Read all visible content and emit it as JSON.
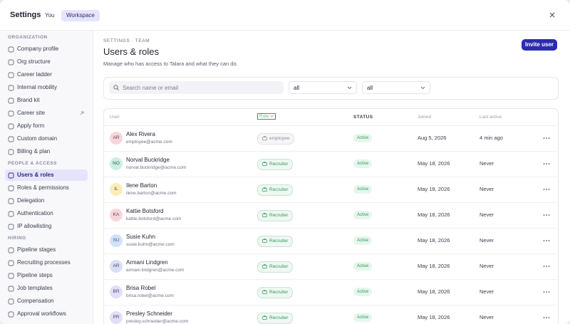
{
  "header": {
    "title": "Settings",
    "tabs": [
      {
        "label": "You"
      },
      {
        "label": "Workspace",
        "selected": true
      }
    ]
  },
  "sidebar": {
    "sections": [
      {
        "label": "ORGANIZATION",
        "items": [
          {
            "label": "Company profile"
          },
          {
            "label": "Org structure"
          },
          {
            "label": "Career ladder"
          },
          {
            "label": "Internal mobility"
          },
          {
            "label": "Brand kit"
          },
          {
            "label": "Career site",
            "external": true
          },
          {
            "label": "Apply form"
          },
          {
            "label": "Custom domain"
          },
          {
            "label": "Billing & plan"
          }
        ]
      },
      {
        "label": "PEOPLE & ACCESS",
        "items": [
          {
            "label": "Users & roles",
            "active": true
          },
          {
            "label": "Roles & permissions"
          },
          {
            "label": "Delegation"
          },
          {
            "label": "Authentication"
          },
          {
            "label": "IP allowlisting"
          }
        ]
      },
      {
        "label": "HIRING",
        "items": [
          {
            "label": "Pipeline stages"
          },
          {
            "label": "Recruiting processes"
          },
          {
            "label": "Pipeline steps"
          },
          {
            "label": "Job templates"
          },
          {
            "label": "Compensation"
          },
          {
            "label": "Approval workflows"
          }
        ]
      }
    ]
  },
  "main": {
    "breadcrumb": "SETTINGS · TEAM",
    "title": "Users & roles",
    "subtitle": "Manage who has access to Talara and what they can do.",
    "invite_button": "Invite user",
    "search_placeholder": "Search name or email",
    "filters": [
      "all",
      "all"
    ],
    "table": {
      "columns": [
        "User",
        "Role",
        "STATUS",
        "Joined",
        "Last active"
      ],
      "rows": [
        {
          "initials": "AR",
          "avatar_color": "#f9d5db",
          "name": "Alex Rivera",
          "email": "employee@acme.com",
          "role": "employee",
          "role_color": "#8a8c9b",
          "status": "Active",
          "joined": "Aug 5, 2026",
          "last_active": "4 min ago"
        },
        {
          "initials": "NO",
          "avatar_color": "#c9f1df",
          "name": "Norval Buckridge",
          "email": "norval.buckridge@acme.com",
          "role": "Recruiter",
          "role_color": "#2f9a5c",
          "status": "Active",
          "joined": "May 18, 2026",
          "last_active": "Never"
        },
        {
          "initials": "IL",
          "avatar_color": "#fbedb5",
          "name": "Ilene Barton",
          "email": "ilene.barton@acme.com",
          "role": "Recruiter",
          "role_color": "#2f9a5c",
          "status": "Active",
          "joined": "May 18, 2026",
          "last_active": "Never"
        },
        {
          "initials": "KA",
          "avatar_color": "#f9d5db",
          "name": "Kattie Botsford",
          "email": "kattie.botsford@acme.com",
          "role": "Recruiter",
          "role_color": "#2f9a5c",
          "status": "Active",
          "joined": "May 18, 2026",
          "last_active": "Never"
        },
        {
          "initials": "SU",
          "avatar_color": "#d1e2fb",
          "name": "Susie Kuhn",
          "email": "susie.kuhn@acme.com",
          "role": "Recruiter",
          "role_color": "#2f9a5c",
          "status": "Active",
          "joined": "May 18, 2026",
          "last_active": "Never"
        },
        {
          "initials": "AR",
          "avatar_color": "#d9dff6",
          "name": "Armani Lindgren",
          "email": "armani.lindgren@acme.com",
          "role": "Recruiter",
          "role_color": "#2f9a5c",
          "status": "Active",
          "joined": "May 18, 2026",
          "last_active": "Never"
        },
        {
          "initials": "BR",
          "avatar_color": "#e4ddf8",
          "name": "Brisa Robel",
          "email": "brisa.robel@acme.com",
          "role": "Recruiter",
          "role_color": "#2f9a5c",
          "status": "Active",
          "joined": "May 18, 2026",
          "last_active": "Never"
        },
        {
          "initials": "PR",
          "avatar_color": "#e4ddf8",
          "name": "Presley Schneider",
          "email": "presley.schneider@acme.com",
          "role": "Recruiter",
          "role_color": "#2f9a5c",
          "status": "Active",
          "joined": "May 18, 2026",
          "last_active": "Never"
        }
      ]
    }
  }
}
